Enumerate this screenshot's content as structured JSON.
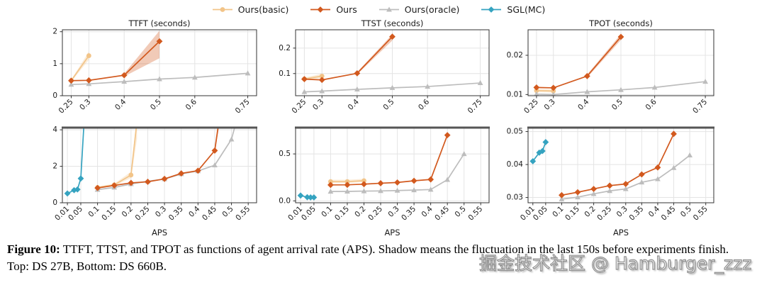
{
  "colors": {
    "basic": "#F2C488",
    "ours": "#D2591E",
    "oracle": "#BDBDBD",
    "sgl": "#35A3C0",
    "grid": "#E4E4E4",
    "spine": "#333333",
    "thick_top": "#555555"
  },
  "legend": {
    "items": [
      {
        "label": "Ours(basic)",
        "color_key": "basic",
        "marker": "circle"
      },
      {
        "label": "Ours",
        "color_key": "ours",
        "marker": "diamond"
      },
      {
        "label": "Ours(oracle)",
        "color_key": "oracle",
        "marker": "triangle"
      },
      {
        "label": "SGL(MC)",
        "color_key": "sgl",
        "marker": "diamond"
      }
    ]
  },
  "chart_data": [
    {
      "type": "line",
      "title": "TTFT (seconds)",
      "xlabel": "",
      "xlim": [
        0.225,
        0.775
      ],
      "ylim": [
        0,
        2.06
      ],
      "xticks": [
        0.25,
        0.3,
        0.4,
        0.5,
        0.6,
        0.75
      ],
      "xtick_labels": [
        "0.25",
        "0.3",
        "0.4",
        "0.5",
        "0.6",
        "0.75"
      ],
      "yticks": [
        0,
        1,
        2
      ],
      "ytick_labels": [
        "0",
        "1",
        "2"
      ],
      "series": [
        {
          "name": "Ours(basic)",
          "color_key": "basic",
          "marker": "circle",
          "x": [
            0.25,
            0.3
          ],
          "y": [
            0.47,
            1.25
          ],
          "band": {
            "x": [
              0.25,
              0.3
            ],
            "lo": [
              0.44,
              1.12
            ],
            "hi": [
              0.5,
              1.38
            ]
          }
        },
        {
          "name": "Ours(oracle)",
          "color_key": "oracle",
          "marker": "triangle",
          "x": [
            0.25,
            0.3,
            0.4,
            0.5,
            0.6,
            0.75
          ],
          "y": [
            0.35,
            0.37,
            0.44,
            0.52,
            0.57,
            0.7
          ]
        },
        {
          "name": "Ours",
          "color_key": "ours",
          "marker": "diamond",
          "x": [
            0.25,
            0.3,
            0.4,
            0.5
          ],
          "y": [
            0.47,
            0.48,
            0.64,
            1.7
          ],
          "band": {
            "x": [
              0.4,
              0.5
            ],
            "lo": [
              0.6,
              1.17
            ],
            "hi": [
              0.69,
              2.03
            ]
          }
        }
      ]
    },
    {
      "type": "line",
      "title": "TTST (seconds)",
      "xlabel": "",
      "xlim": [
        0.225,
        0.775
      ],
      "ylim": [
        0.013,
        0.272
      ],
      "xticks": [
        0.25,
        0.3,
        0.4,
        0.5,
        0.6,
        0.75
      ],
      "xtick_labels": [
        "0.25",
        "0.3",
        "0.4",
        "0.5",
        "0.6",
        "0.75"
      ],
      "yticks": [
        0.1,
        0.2
      ],
      "ytick_labels": [
        "0.1",
        "0.2"
      ],
      "series": [
        {
          "name": "Ours(basic)",
          "color_key": "basic",
          "marker": "circle",
          "x": [
            0.25,
            0.3
          ],
          "y": [
            0.079,
            0.09
          ],
          "band": {
            "x": [
              0.25,
              0.3
            ],
            "lo": [
              0.074,
              0.082
            ],
            "hi": [
              0.084,
              0.099
            ]
          }
        },
        {
          "name": "Ours(oracle)",
          "color_key": "oracle",
          "marker": "triangle",
          "x": [
            0.25,
            0.3,
            0.4,
            0.5,
            0.6,
            0.75
          ],
          "y": [
            0.028,
            0.031,
            0.038,
            0.044,
            0.049,
            0.063
          ]
        },
        {
          "name": "Ours",
          "color_key": "ours",
          "marker": "diamond",
          "x": [
            0.25,
            0.3,
            0.4,
            0.5
          ],
          "y": [
            0.078,
            0.075,
            0.101,
            0.245
          ],
          "band": {
            "x": [
              0.4,
              0.5
            ],
            "lo": [
              0.097,
              0.23
            ],
            "hi": [
              0.106,
              0.254
            ]
          }
        }
      ]
    },
    {
      "type": "line",
      "title": "TPOT (seconds)",
      "xlabel": "",
      "xlim": [
        0.225,
        0.775
      ],
      "ylim": [
        0.0097,
        0.0265
      ],
      "xticks": [
        0.25,
        0.3,
        0.4,
        0.5,
        0.6,
        0.75
      ],
      "xtick_labels": [
        "0.25",
        "0.3",
        "0.4",
        "0.5",
        "0.6",
        "0.75"
      ],
      "yticks": [
        0.01,
        0.02
      ],
      "ytick_labels": [
        "0.01",
        "0.02"
      ],
      "series": [
        {
          "name": "Ours(basic)",
          "color_key": "basic",
          "marker": "circle",
          "x": [
            0.25,
            0.3
          ],
          "y": [
            0.011,
            0.0109
          ],
          "band": {
            "x": [
              0.25,
              0.3
            ],
            "lo": [
              0.0106,
              0.0105
            ],
            "hi": [
              0.0114,
              0.0113
            ]
          }
        },
        {
          "name": "Ours(oracle)",
          "color_key": "oracle",
          "marker": "triangle",
          "x": [
            0.25,
            0.3,
            0.4,
            0.5,
            0.6,
            0.75
          ],
          "y": [
            0.0101,
            0.01,
            0.0107,
            0.0112,
            0.0118,
            0.0133
          ]
        },
        {
          "name": "Ours",
          "color_key": "ours",
          "marker": "diamond",
          "x": [
            0.25,
            0.3,
            0.4,
            0.5
          ],
          "y": [
            0.0118,
            0.0117,
            0.0147,
            0.0247
          ],
          "band": {
            "x": [
              0.4,
              0.5
            ],
            "lo": [
              0.0143,
              0.0239
            ],
            "hi": [
              0.0151,
              0.0254
            ]
          }
        }
      ]
    },
    {
      "type": "line",
      "title": "",
      "xlabel": "APS",
      "xlim": [
        -0.005,
        0.575
      ],
      "ylim": [
        0,
        4.12
      ],
      "xticks": [
        0.01,
        0.05,
        0.1,
        0.15,
        0.2,
        0.25,
        0.3,
        0.35,
        0.4,
        0.45,
        0.5,
        0.55
      ],
      "xtick_labels": [
        "0.01",
        "0.05",
        "0.1",
        "0.15",
        "0.2",
        "0.25",
        "0.3",
        "0.35",
        "0.4",
        "0.45",
        "0.5",
        "0.55"
      ],
      "yticks": [
        0,
        2,
        4
      ],
      "ytick_labels": [
        "0",
        "2",
        "4"
      ],
      "series": [
        {
          "name": "Ours(basic)",
          "color_key": "basic",
          "marker": "circle",
          "x": [
            0.1,
            0.15,
            0.2,
            0.218
          ],
          "y": [
            0.84,
            0.98,
            1.52,
            4.5
          ],
          "band": {
            "x": [
              0.1,
              0.15,
              0.2,
              0.218
            ],
            "lo": [
              0.79,
              0.92,
              1.36,
              3.5
            ],
            "hi": [
              0.89,
              1.05,
              1.7,
              4.9
            ]
          }
        },
        {
          "name": "Ours(oracle)",
          "color_key": "oracle",
          "marker": "triangle",
          "x": [
            0.1,
            0.15,
            0.2,
            0.25,
            0.3,
            0.35,
            0.4,
            0.45,
            0.5,
            0.515
          ],
          "y": [
            0.72,
            0.84,
            1.03,
            1.18,
            1.3,
            1.58,
            1.74,
            2.06,
            3.48,
            4.5
          ]
        },
        {
          "name": "Ours",
          "color_key": "ours",
          "marker": "diamond",
          "x": [
            0.1,
            0.15,
            0.2,
            0.25,
            0.3,
            0.35,
            0.4,
            0.45,
            0.463
          ],
          "y": [
            0.81,
            0.95,
            1.09,
            1.15,
            1.31,
            1.61,
            1.76,
            2.86,
            4.5
          ],
          "band": {
            "x": [
              0.45,
              0.463
            ],
            "lo": [
              2.7,
              4.2
            ],
            "hi": [
              3.05,
              4.9
            ]
          }
        },
        {
          "name": "SGL(MC)",
          "color_key": "sgl",
          "marker": "diamond",
          "x": [
            0.01,
            0.03,
            0.04,
            0.05,
            0.06
          ],
          "y": [
            0.51,
            0.69,
            0.73,
            1.33,
            4.5
          ]
        }
      ]
    },
    {
      "type": "line",
      "title": "",
      "xlabel": "APS",
      "xlim": [
        -0.005,
        0.575
      ],
      "ylim": [
        -0.02,
        0.78
      ],
      "xticks": [
        0.01,
        0.05,
        0.1,
        0.15,
        0.2,
        0.25,
        0.3,
        0.35,
        0.4,
        0.45,
        0.5,
        0.55
      ],
      "xtick_labels": [
        "0.01",
        "0.05",
        "0.1",
        "0.15",
        "0.2",
        "0.25",
        "0.3",
        "0.35",
        "0.4",
        "0.45",
        "0.5",
        "0.55"
      ],
      "yticks": [
        0.0,
        0.5
      ],
      "ytick_labels": [
        "0.0",
        "0.5"
      ],
      "series": [
        {
          "name": "Ours(basic)",
          "color_key": "basic",
          "marker": "circle",
          "x": [
            0.1,
            0.15,
            0.2
          ],
          "y": [
            0.205,
            0.205,
            0.215
          ],
          "band": {
            "x": [
              0.1,
              0.15,
              0.2
            ],
            "lo": [
              0.19,
              0.19,
              0.2
            ],
            "hi": [
              0.225,
              0.225,
              0.235
            ]
          }
        },
        {
          "name": "Ours(oracle)",
          "color_key": "oracle",
          "marker": "triangle",
          "x": [
            0.1,
            0.15,
            0.2,
            0.25,
            0.3,
            0.35,
            0.4,
            0.45,
            0.5
          ],
          "y": [
            0.1,
            0.101,
            0.104,
            0.106,
            0.11,
            0.115,
            0.121,
            0.225,
            0.5
          ]
        },
        {
          "name": "Ours",
          "color_key": "ours",
          "marker": "diamond",
          "x": [
            0.1,
            0.15,
            0.2,
            0.25,
            0.3,
            0.35,
            0.4,
            0.45
          ],
          "y": [
            0.17,
            0.171,
            0.178,
            0.188,
            0.196,
            0.214,
            0.228,
            0.7
          ]
        },
        {
          "name": "SGL(MC)",
          "color_key": "sgl",
          "marker": "diamond",
          "x": [
            0.01,
            0.03,
            0.04,
            0.05
          ],
          "y": [
            0.057,
            0.039,
            0.037,
            0.037
          ]
        }
      ]
    },
    {
      "type": "line",
      "title": "",
      "xlabel": "APS",
      "xlim": [
        -0.005,
        0.575
      ],
      "ylim": [
        0.0284,
        0.0512
      ],
      "xticks": [
        0.01,
        0.05,
        0.1,
        0.15,
        0.2,
        0.25,
        0.3,
        0.35,
        0.4,
        0.45,
        0.5,
        0.55
      ],
      "xtick_labels": [
        "0.01",
        "0.05",
        "0.1",
        "0.15",
        "0.2",
        "0.25",
        "0.3",
        "0.35",
        "0.4",
        "0.45",
        "0.5",
        "0.55"
      ],
      "yticks": [
        0.03,
        0.04,
        0.05
      ],
      "ytick_labels": [
        "0.03",
        "0.04",
        "0.05"
      ],
      "series": [
        {
          "name": "Ours(oracle)",
          "color_key": "oracle",
          "marker": "triangle",
          "x": [
            0.1,
            0.15,
            0.2,
            0.25,
            0.3,
            0.35,
            0.4,
            0.45,
            0.5
          ],
          "y": [
            0.0295,
            0.0301,
            0.0311,
            0.032,
            0.0326,
            0.0346,
            0.0356,
            0.039,
            0.0428
          ]
        },
        {
          "name": "Ours",
          "color_key": "ours",
          "marker": "diamond",
          "x": [
            0.1,
            0.15,
            0.2,
            0.25,
            0.3,
            0.35,
            0.4,
            0.45
          ],
          "y": [
            0.0307,
            0.0316,
            0.0326,
            0.0336,
            0.0341,
            0.037,
            0.0391,
            0.0493
          ]
        },
        {
          "name": "SGL(MC)",
          "color_key": "sgl",
          "marker": "diamond",
          "x": [
            0.01,
            0.03,
            0.04,
            0.05
          ],
          "y": [
            0.041,
            0.0436,
            0.0441,
            0.0468
          ]
        }
      ]
    }
  ],
  "caption": {
    "label": "Figure 10:",
    "text": " TTFT, TTST, and TPOT as functions of agent arrival rate (APS). Shadow means the fluctuation in the last 150s before experiments finish. Top: DS 27B, Bottom: DS 660B."
  },
  "watermark": {
    "text": "掘金技术社区 @ Hamburger_zzz"
  }
}
